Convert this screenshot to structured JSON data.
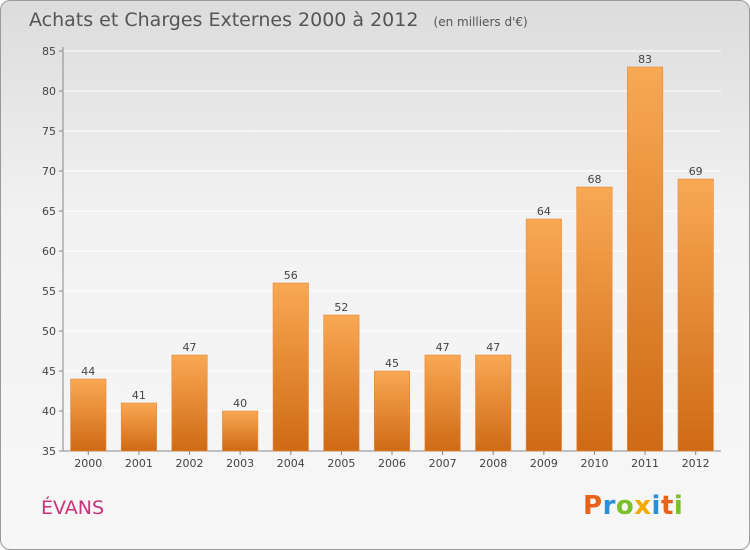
{
  "header": {
    "title": "Achats et Charges Externes 2000 à 2012",
    "unit": "(en milliers d'€)"
  },
  "footer": {
    "town": "ÉVANS",
    "brand": "Proxiti"
  },
  "colors": {
    "bar_light": "#f9a854",
    "bar_dark": "#cf6a15",
    "title": "#555555",
    "town": "#c8327a",
    "grid": "#ffffff"
  },
  "chart_data": {
    "type": "bar",
    "title": "Achats et Charges Externes 2000 à 2012",
    "subtitle": "(en milliers d'€)",
    "categories": [
      "2000",
      "2001",
      "2002",
      "2003",
      "2004",
      "2005",
      "2006",
      "2007",
      "2008",
      "2009",
      "2010",
      "2011",
      "2012"
    ],
    "values": [
      44,
      41,
      47,
      40,
      56,
      52,
      45,
      47,
      47,
      64,
      68,
      83,
      69
    ],
    "ylim": [
      35,
      85
    ],
    "yticks": [
      35,
      40,
      45,
      50,
      55,
      60,
      65,
      70,
      75,
      80,
      85
    ],
    "grid": true,
    "data_labels": true
  }
}
